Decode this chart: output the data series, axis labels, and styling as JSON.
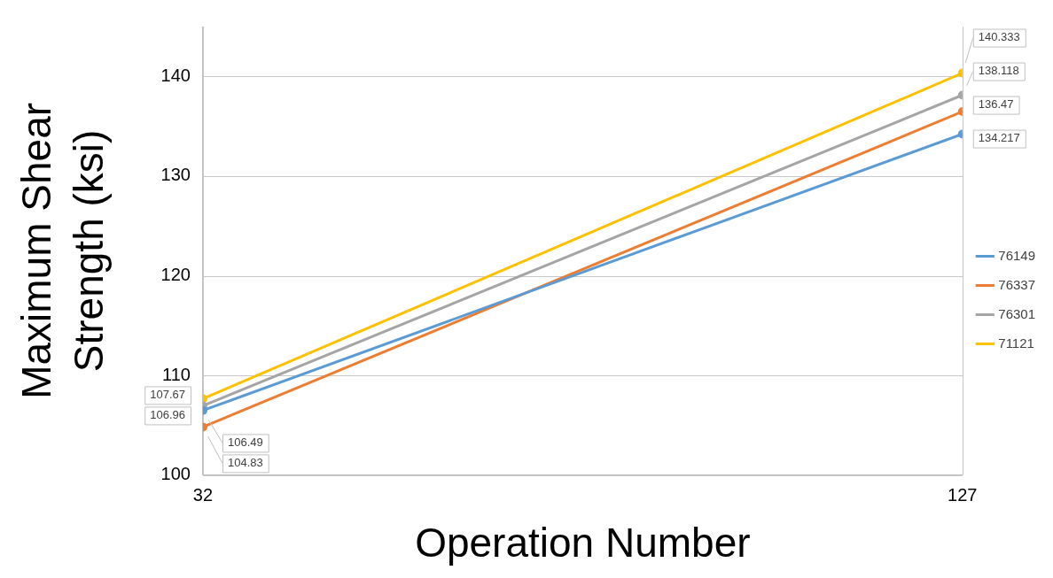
{
  "chart_data": {
    "type": "line",
    "xlabel": "Operation Number",
    "ylabel": "Maximum Shear Strength (ksi)",
    "x": [
      32,
      127
    ],
    "xlim": [
      32,
      127
    ],
    "xticks": [
      32,
      127
    ],
    "series": [
      {
        "name": "76149",
        "color": "#5b9bd5",
        "values": [
          106.49,
          134.217
        ]
      },
      {
        "name": "76337",
        "color": "#ed7d31",
        "values": [
          104.83,
          136.47
        ]
      },
      {
        "name": "76301",
        "color": "#a5a5a5",
        "values": [
          106.96,
          138.118
        ]
      },
      {
        "name": "71121",
        "color": "#ffc000",
        "values": [
          107.67,
          140.333
        ]
      }
    ],
    "ylim": [
      100,
      145
    ],
    "yticks": [
      100,
      110,
      120,
      130,
      140
    ],
    "grid": true,
    "legend": "right",
    "marker": "circle",
    "line_style": "solid",
    "data_labels": true
  }
}
